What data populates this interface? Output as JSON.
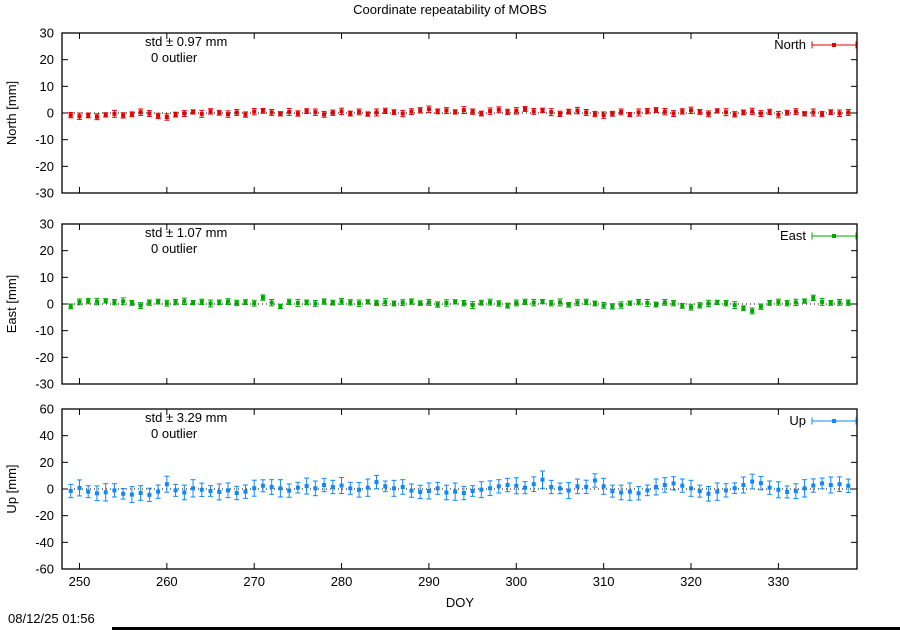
{
  "chart_data": {
    "type": "scatter",
    "title": "Coordinate repeatability of MOBS",
    "xlabel": "DOY",
    "timestamp": "08/12/25 01:56",
    "xlim": [
      248,
      339
    ],
    "xticks": [
      250,
      260,
      270,
      280,
      290,
      300,
      310,
      320,
      330
    ],
    "x": [
      249,
      250,
      251,
      252,
      253,
      254,
      255,
      256,
      257,
      258,
      259,
      260,
      261,
      262,
      263,
      264,
      265,
      266,
      267,
      268,
      269,
      270,
      271,
      272,
      273,
      274,
      275,
      276,
      277,
      278,
      279,
      280,
      281,
      282,
      283,
      284,
      285,
      286,
      287,
      288,
      289,
      290,
      291,
      292,
      293,
      294,
      295,
      296,
      297,
      298,
      299,
      300,
      301,
      302,
      303,
      304,
      305,
      306,
      307,
      308,
      309,
      310,
      311,
      312,
      313,
      314,
      315,
      316,
      317,
      318,
      319,
      320,
      321,
      322,
      323,
      324,
      325,
      326,
      327,
      328,
      329,
      330,
      331,
      332,
      333,
      334,
      335,
      336,
      337,
      338
    ],
    "series": [
      {
        "name": "North",
        "ylabel": "North [mm]",
        "color": "#e60000",
        "std_label": "std ± 0.97 mm",
        "outlier_label": "0 outlier",
        "ylim": [
          -30,
          30
        ],
        "yticks": [
          -30,
          -20,
          -10,
          0,
          10,
          20,
          30
        ],
        "y": [
          -0.8,
          -1.2,
          -0.9,
          -1.4,
          -0.7,
          -0.3,
          -0.9,
          -0.5,
          0.3,
          -0.2,
          -1.1,
          -1.5,
          -0.6,
          -0.2,
          0.4,
          -0.3,
          0.6,
          0.1,
          -0.4,
          0.2,
          -0.6,
          0.5,
          0.8,
          0.2,
          -0.3,
          0.4,
          -0.2,
          0.7,
          0.3,
          -0.5,
          0.1,
          0.6,
          -0.2,
          0.4,
          -0.4,
          0.2,
          0.8,
          0.3,
          -0.2,
          0.5,
          1.0,
          1.4,
          0.6,
          0.9,
          0.4,
          1.1,
          0.5,
          -0.2,
          0.7,
          1.2,
          0.4,
          0.8,
          1.5,
          0.6,
          1.0,
          0.3,
          -0.3,
          0.5,
          0.9,
          0.2,
          -0.4,
          -0.8,
          -0.3,
          0.4,
          -0.6,
          0.2,
          0.7,
          1.1,
          0.5,
          -0.2,
          0.6,
          1.0,
          0.4,
          -0.3,
          0.8,
          0.3,
          -0.5,
          0.2,
          0.6,
          -0.2,
          0.4,
          -0.6,
          0.1,
          0.5,
          -0.3,
          0.2,
          -0.4,
          0.3,
          -0.1,
          0.2
        ],
        "err": [
          1.0,
          1.2,
          0.9,
          1.1,
          0.8,
          1.3,
          1.0,
          0.9,
          1.2,
          1.1,
          1.0,
          1.2,
          0.9,
          1.1,
          0.8,
          1.3,
          1.0,
          0.9,
          1.2,
          1.1,
          1.0,
          1.2,
          0.9,
          1.1,
          0.8,
          1.3,
          1.0,
          0.9,
          1.2,
          1.1,
          1.0,
          1.2,
          0.9,
          1.1,
          0.8,
          1.3,
          1.0,
          0.9,
          1.2,
          1.1,
          1.0,
          1.2,
          0.9,
          1.1,
          0.8,
          1.3,
          1.0,
          0.9,
          1.2,
          1.1,
          1.0,
          1.2,
          0.9,
          1.1,
          0.8,
          1.3,
          1.0,
          0.9,
          1.2,
          1.1,
          1.0,
          1.2,
          0.9,
          1.1,
          0.8,
          1.3,
          1.0,
          0.9,
          1.2,
          1.1,
          1.0,
          1.2,
          0.9,
          1.1,
          0.8,
          1.3,
          1.0,
          0.9,
          1.2,
          1.1,
          1.0,
          1.2,
          0.9,
          1.1,
          0.8,
          1.3,
          1.0,
          0.9,
          1.2,
          1.1
        ]
      },
      {
        "name": "East",
        "ylabel": "East [mm]",
        "color": "#00a800",
        "std_label": "std ± 1.07 mm",
        "outlier_label": "0 outlier",
        "ylim": [
          -30,
          30
        ],
        "yticks": [
          -30,
          -20,
          -10,
          0,
          10,
          20,
          30
        ],
        "y": [
          -0.9,
          0.8,
          1.1,
          0.9,
          1.2,
          0.7,
          1.0,
          0.4,
          -0.6,
          0.5,
          0.9,
          0.3,
          0.7,
          1.0,
          0.5,
          0.8,
          0.2,
          0.6,
          0.9,
          0.4,
          0.7,
          0.3,
          2.4,
          0.5,
          -0.9,
          0.8,
          0.4,
          0.6,
          0.2,
          0.9,
          0.5,
          1.0,
          0.6,
          0.3,
          0.8,
          0.4,
          0.7,
          0.2,
          0.5,
          0.9,
          0.3,
          0.6,
          -0.2,
          0.4,
          0.8,
          0.3,
          -0.4,
          0.5,
          0.7,
          0.2,
          -0.6,
          0.4,
          0.8,
          0.5,
          0.9,
          0.3,
          0.6,
          -0.3,
          0.5,
          0.8,
          0.2,
          -0.5,
          -0.9,
          -0.4,
          0.3,
          0.7,
          0.4,
          -0.2,
          0.6,
          0.3,
          -0.7,
          -1.2,
          -0.5,
          0.2,
          0.6,
          0.3,
          -0.4,
          -1.6,
          -2.6,
          -1.0,
          0.4,
          0.7,
          0.3,
          0.6,
          1.1,
          2.3,
          0.8,
          0.4,
          0.6,
          0.5
        ],
        "err": [
          0.9,
          1.1,
          1.0,
          1.2,
          0.8,
          1.0,
          1.3,
          0.9,
          1.1,
          1.0,
          0.9,
          1.1,
          1.0,
          1.2,
          0.8,
          1.0,
          1.3,
          0.9,
          1.1,
          1.0,
          0.9,
          1.1,
          1.0,
          1.2,
          0.8,
          1.0,
          1.3,
          0.9,
          1.1,
          1.0,
          0.9,
          1.1,
          1.0,
          1.2,
          0.8,
          1.0,
          1.3,
          0.9,
          1.1,
          1.0,
          0.9,
          1.1,
          1.0,
          1.2,
          0.8,
          1.0,
          1.3,
          0.9,
          1.1,
          1.0,
          0.9,
          1.1,
          1.0,
          1.2,
          0.8,
          1.0,
          1.3,
          0.9,
          1.1,
          1.0,
          0.9,
          1.1,
          1.0,
          1.2,
          0.8,
          1.0,
          1.3,
          0.9,
          1.1,
          1.0,
          0.9,
          1.1,
          1.0,
          1.2,
          0.8,
          1.0,
          1.3,
          0.9,
          1.1,
          1.0,
          0.9,
          1.1,
          1.0,
          1.2,
          0.8,
          1.0,
          1.3,
          0.9,
          1.1,
          1.0
        ]
      },
      {
        "name": "Up",
        "ylabel": "Up [mm]",
        "color": "#0f87ff",
        "std_label": "std ± 3.29 mm",
        "outlier_label": "0 outlier",
        "ylim": [
          -60,
          60
        ],
        "yticks": [
          -60,
          -40,
          -20,
          0,
          20,
          40,
          60
        ],
        "y": [
          -1.5,
          0.8,
          -2.0,
          -3.2,
          -2.5,
          -1.0,
          -3.6,
          -4.2,
          -3.0,
          -4.4,
          -2.0,
          3.6,
          -1.0,
          -2.6,
          0.5,
          -0.6,
          -1.5,
          -2.2,
          -1.0,
          -3.0,
          -2.0,
          0.6,
          2.4,
          1.5,
          0.5,
          -1.2,
          1.0,
          2.2,
          0.5,
          3.0,
          1.5,
          2.6,
          0.5,
          -0.6,
          1.0,
          5.2,
          2.0,
          0.5,
          1.5,
          -1.2,
          -2.2,
          -1.5,
          0.5,
          -2.6,
          -2.0,
          -3.0,
          -1.5,
          -0.5,
          0.6,
          2.0,
          3.0,
          2.4,
          1.0,
          3.6,
          7.0,
          1.5,
          0.5,
          -1.2,
          2.0,
          1.6,
          6.4,
          2.0,
          -1.6,
          -2.6,
          -2.0,
          -3.2,
          -1.0,
          1.5,
          3.0,
          4.2,
          2.5,
          0.5,
          -1.6,
          -3.6,
          -2.0,
          -1.0,
          0.6,
          3.0,
          5.6,
          4.4,
          1.0,
          -0.6,
          -2.2,
          -1.6,
          0.5,
          2.6,
          4.2,
          3.0,
          3.6,
          2.4
        ],
        "err": [
          5.0,
          6.0,
          4.5,
          5.5,
          6.5,
          5.0,
          4.0,
          6.0,
          5.5,
          5.0,
          5.0,
          6.0,
          4.5,
          5.5,
          6.5,
          5.0,
          4.0,
          6.0,
          5.5,
          5.0,
          5.0,
          6.0,
          4.5,
          5.5,
          6.5,
          5.0,
          4.0,
          6.0,
          5.5,
          5.0,
          5.0,
          6.0,
          4.5,
          5.5,
          6.5,
          5.0,
          4.0,
          6.0,
          5.5,
          5.0,
          5.0,
          6.0,
          4.5,
          5.5,
          6.5,
          5.0,
          4.0,
          6.0,
          5.5,
          5.0,
          5.0,
          6.0,
          4.5,
          5.5,
          6.5,
          5.0,
          4.0,
          6.0,
          5.5,
          5.0,
          5.0,
          6.0,
          4.5,
          5.5,
          6.5,
          5.0,
          4.0,
          6.0,
          5.5,
          5.0,
          5.0,
          6.0,
          4.5,
          5.5,
          6.5,
          5.0,
          4.0,
          6.0,
          5.5,
          5.0,
          5.0,
          6.0,
          4.5,
          5.5,
          6.5,
          5.0,
          4.0,
          6.0,
          5.5,
          5.0
        ]
      }
    ]
  }
}
